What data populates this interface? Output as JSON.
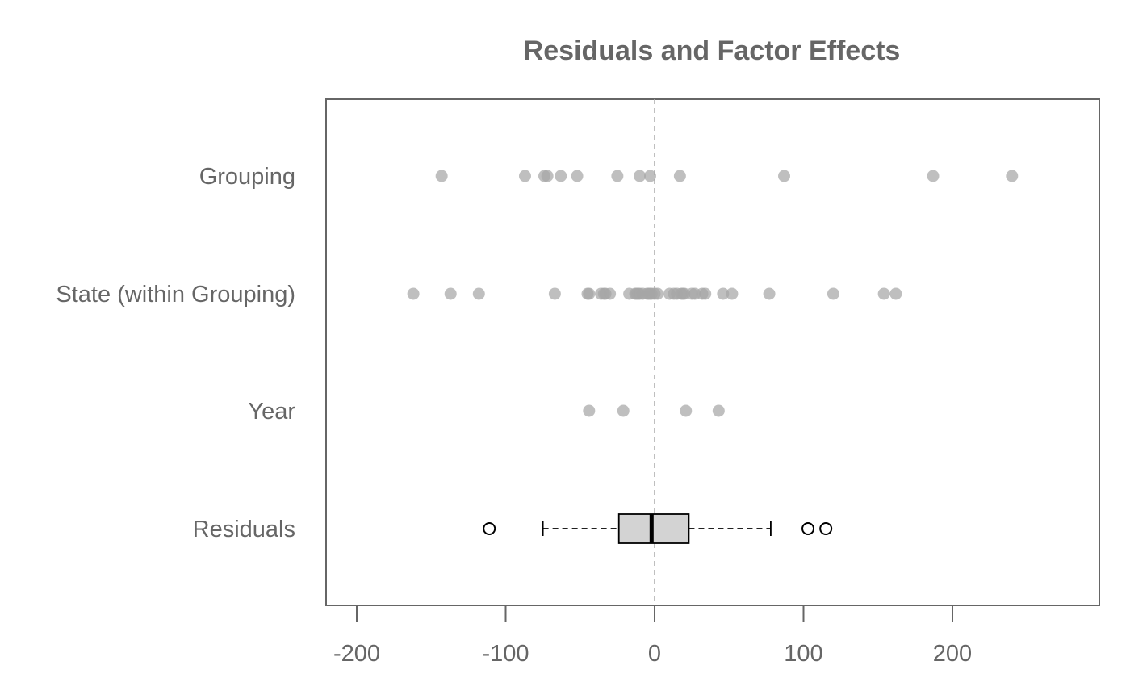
{
  "chart_data": {
    "type": "scatter",
    "title": "Residuals and Factor Effects",
    "xlabel": "",
    "ylabel": "",
    "xlim": [
      -220,
      300
    ],
    "x_ticks": [
      -200,
      -100,
      0,
      100,
      200
    ],
    "x_tick_labels": [
      "-200",
      "-100",
      "0",
      "100",
      "200"
    ],
    "reference_line_x": 0,
    "grid": false,
    "colors": {
      "points": "#a6a6a6",
      "axis": "#666666",
      "box_fill": "#d3d3d3",
      "box_stroke": "#000000",
      "reference_line": "#aaaaaa"
    },
    "categories": [
      "Grouping",
      "State (within Grouping)",
      "Year",
      "Residuals"
    ],
    "series": [
      {
        "values": [
          -143,
          -87,
          -74,
          -72,
          -63,
          -52,
          -25,
          -10,
          -3,
          17,
          87,
          187,
          240
        ]
      },
      {
        "values": [
          -162,
          -137,
          -118,
          -67,
          -45,
          -44,
          -36,
          -34,
          -33,
          -30,
          -17,
          -13,
          -12,
          -11,
          -10,
          -8,
          -5,
          -4,
          -3,
          -2,
          0,
          2,
          10,
          13,
          15,
          18,
          19,
          20,
          25,
          27,
          32,
          34,
          46,
          52,
          77,
          120,
          154,
          162
        ]
      },
      {
        "values": [
          -44,
          -21,
          21,
          43
        ]
      }
    ],
    "residuals_boxplot": {
      "min_whisker": -75,
      "q1": -24,
      "median": -2,
      "q3": 23,
      "max_whisker": 78,
      "outliers": [
        -111,
        103,
        115
      ]
    }
  }
}
